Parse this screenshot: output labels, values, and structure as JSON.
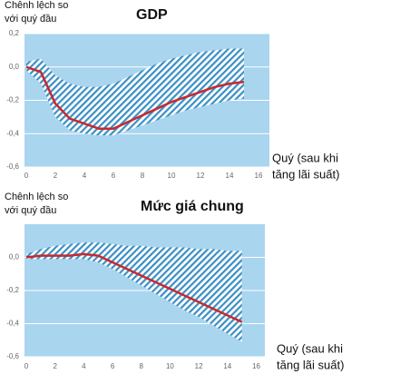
{
  "chart_data": [
    {
      "type": "band-line",
      "title": "GDP",
      "y_label": [
        "Chênh lệch so",
        "với quý đầu"
      ],
      "x_label": [
        "Quý (sau khi",
        "tăng lãi suất)"
      ],
      "x": [
        0,
        1,
        2,
        3,
        4,
        5,
        6,
        7,
        8,
        9,
        10,
        11,
        12,
        13,
        14,
        15
      ],
      "line": {
        "color": "#c8282d",
        "values": [
          0.0,
          -0.03,
          -0.22,
          -0.31,
          -0.34,
          -0.37,
          -0.37,
          -0.33,
          -0.29,
          -0.25,
          -0.21,
          -0.18,
          -0.15,
          -0.12,
          -0.1,
          -0.09
        ]
      },
      "band": {
        "color": "#3a8fc4",
        "upper": [
          0.03,
          0.05,
          -0.05,
          -0.1,
          -0.12,
          -0.12,
          -0.1,
          -0.06,
          -0.02,
          0.02,
          0.05,
          0.07,
          0.09,
          0.1,
          0.11,
          0.11
        ],
        "lower": [
          -0.02,
          -0.1,
          -0.3,
          -0.38,
          -0.4,
          -0.41,
          -0.41,
          -0.38,
          -0.35,
          -0.32,
          -0.29,
          -0.26,
          -0.24,
          -0.22,
          -0.2,
          -0.19
        ]
      },
      "background": "#a9d5ef",
      "xlim": [
        0,
        16.75
      ],
      "xticks": [
        0,
        2,
        4,
        6,
        8,
        10,
        12,
        14,
        16
      ],
      "ylim": [
        -0.6,
        0.2
      ],
      "yticks": [
        {
          "value": 0.2,
          "label": "0,2"
        },
        {
          "value": 0.0,
          "label": "0,0"
        },
        {
          "value": -0.2,
          "label": "-0,2"
        },
        {
          "value": -0.4,
          "label": "-0,4"
        },
        {
          "value": -0.6,
          "label": "-0,6"
        }
      ],
      "grid": true
    },
    {
      "type": "band-line",
      "title": "Mức giá chung",
      "y_label": [
        "Chênh lệch so",
        "với quý đầu"
      ],
      "x_label": [
        "Quý (sau khi",
        "tăng lãi suất)"
      ],
      "x": [
        0,
        1,
        2,
        3,
        4,
        5,
        6,
        7,
        8,
        9,
        10,
        11,
        12,
        13,
        14,
        15
      ],
      "line": {
        "color": "#c8282d",
        "values": [
          0.0,
          0.01,
          0.01,
          0.01,
          0.02,
          0.01,
          -0.03,
          -0.07,
          -0.11,
          -0.15,
          -0.19,
          -0.23,
          -0.27,
          -0.31,
          -0.35,
          -0.39
        ]
      },
      "band": {
        "color": "#3a8fc4",
        "upper": [
          0.02,
          0.05,
          0.07,
          0.08,
          0.09,
          0.09,
          0.08,
          0.07,
          0.07,
          0.06,
          0.06,
          0.06,
          0.05,
          0.05,
          0.04,
          0.04
        ],
        "lower": [
          -0.01,
          -0.01,
          -0.01,
          -0.01,
          -0.01,
          -0.03,
          -0.07,
          -0.12,
          -0.17,
          -0.22,
          -0.27,
          -0.32,
          -0.36,
          -0.41,
          -0.46,
          -0.51
        ]
      },
      "background": "#a9d5ef",
      "xlim": [
        0,
        16.6
      ],
      "xticks": [
        0,
        2,
        4,
        6,
        8,
        10,
        12,
        14,
        16
      ],
      "ylim": [
        -0.6,
        0.2
      ],
      "yticks": [
        {
          "value": 0.0,
          "label": "0,0"
        },
        {
          "value": -0.2,
          "label": "-0,2"
        },
        {
          "value": -0.4,
          "label": "-0,4"
        },
        {
          "value": -0.6,
          "label": "-0,6"
        }
      ],
      "grid": true
    }
  ]
}
